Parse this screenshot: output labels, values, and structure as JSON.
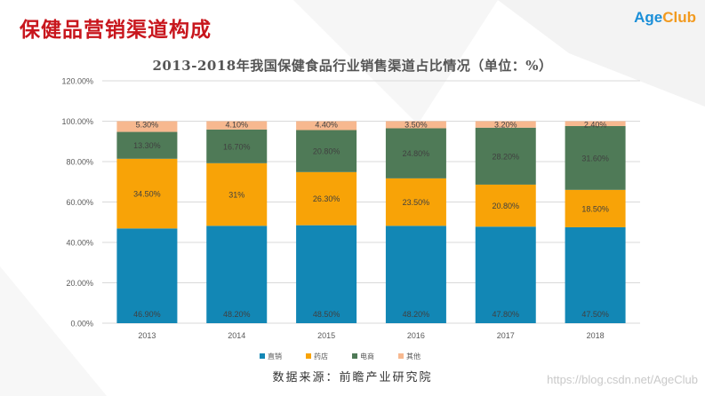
{
  "page": {
    "title": "保健品营销渠道构成",
    "logo": {
      "part1": "Age",
      "part2": "Club"
    },
    "source": "数据来源：前瞻产业研究院",
    "watermark": "https://blog.csdn.net/AgeClub"
  },
  "colors": {
    "title_red": "#c8161d",
    "direct": "#1287b5",
    "pharmacy": "#f8a307",
    "ecommerce": "#4f7a57",
    "other": "#f7b88f"
  },
  "chart_data": {
    "type": "bar",
    "stacked": true,
    "title": "2013-2018年我国保健食品行业销售渠道占比情况（单位：%）",
    "categories": [
      "2013",
      "2014",
      "2015",
      "2016",
      "2017",
      "2018"
    ],
    "series": [
      {
        "name": "直销",
        "color": "#1287b5",
        "values": [
          46.9,
          48.2,
          48.5,
          48.2,
          47.8,
          47.5
        ],
        "labels": [
          "46.90%",
          "48.20%",
          "48.50%",
          "48.20%",
          "47.80%",
          "47.50%"
        ]
      },
      {
        "name": "药店",
        "color": "#f8a307",
        "values": [
          34.5,
          31.0,
          26.3,
          23.5,
          20.8,
          18.5
        ],
        "labels": [
          "34.50%",
          "31%",
          "26.30%",
          "23.50%",
          "20.80%",
          "18.50%"
        ]
      },
      {
        "name": "电商",
        "color": "#4f7a57",
        "values": [
          13.3,
          16.7,
          20.8,
          24.8,
          28.2,
          31.6
        ],
        "labels": [
          "13.30%",
          "16.70%",
          "20.80%",
          "24.80%",
          "28.20%",
          "31.60%"
        ]
      },
      {
        "name": "其他",
        "color": "#f7b88f",
        "values": [
          5.3,
          4.1,
          4.4,
          3.5,
          3.2,
          2.4
        ],
        "labels": [
          "5.30%",
          "4.10%",
          "4.40%",
          "3.50%",
          "3.20%",
          "2.40%"
        ]
      }
    ],
    "ylim": [
      0,
      120
    ],
    "yticks": [
      0,
      20,
      40,
      60,
      80,
      100,
      120
    ],
    "ytick_labels": [
      "0.00%",
      "20.00%",
      "40.00%",
      "60.00%",
      "80.00%",
      "100.00%",
      "120.00%"
    ],
    "grid": true,
    "legend": "bottom-center",
    "xlabel": "",
    "ylabel": ""
  }
}
